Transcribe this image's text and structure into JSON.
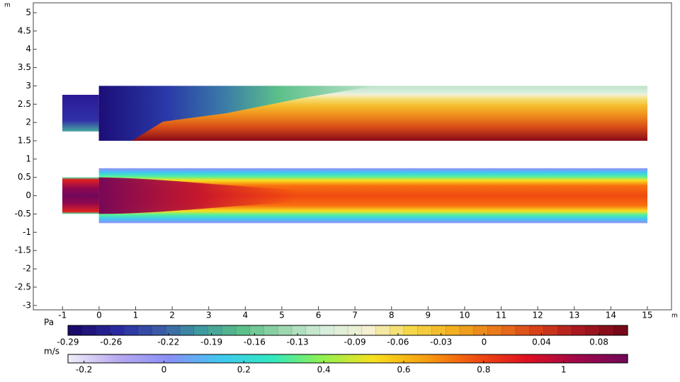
{
  "chart_data": {
    "type": "field",
    "x_unit": "m",
    "y_unit": "m",
    "xlim": [
      -1.8,
      15.66
    ],
    "ylim": [
      -3.12,
      5.27
    ],
    "xticks": [
      -1,
      0,
      1,
      2,
      3,
      4,
      5,
      6,
      7,
      8,
      9,
      10,
      11,
      12,
      13,
      14,
      15
    ],
    "yticks": [
      5,
      4.5,
      4,
      3.5,
      3,
      2.5,
      2,
      1.5,
      1,
      0.5,
      0,
      -0.5,
      -1,
      -1.5,
      -2,
      -2.5,
      -3
    ],
    "colorbars": [
      {
        "unit": "Pa",
        "lim": [
          -0.29,
          0.1
        ],
        "ticks": [
          -0.29,
          -0.26,
          -0.22,
          -0.19,
          -0.16,
          -0.13,
          -0.09,
          -0.06,
          -0.03,
          0,
          0.04,
          0.08
        ],
        "colormap": [
          "#1a0a6b",
          "#2a2aa0",
          "#3a5aa8",
          "#3f9aa0",
          "#5cc08a",
          "#9ed8b0",
          "#d8eedc",
          "#f5f0d0",
          "#f5d84a",
          "#f2b020",
          "#ea7a1a",
          "#d8401a",
          "#a81820",
          "#780818"
        ],
        "steps": 40
      },
      {
        "unit": "m/s",
        "lim": [
          -0.24,
          1.16
        ],
        "ticks": [
          -0.2,
          0,
          0.2,
          0.4,
          0.6,
          0.8,
          1
        ],
        "colormap": [
          "#f0eef8",
          "#b8a8f0",
          "#8890f8",
          "#40c8f0",
          "#30e8c0",
          "#90f050",
          "#f8e020",
          "#f8a010",
          "#f05010",
          "#e01020",
          "#a00848",
          "#700858"
        ]
      }
    ]
  }
}
